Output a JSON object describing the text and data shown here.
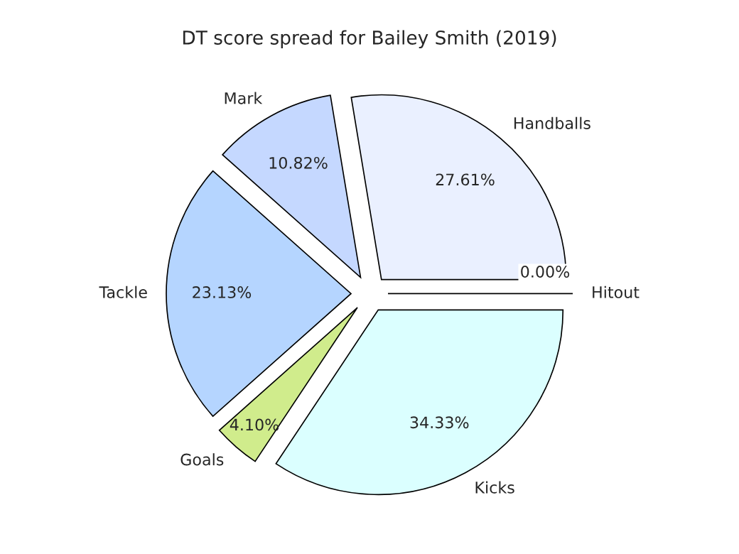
{
  "chart_data": {
    "type": "pie",
    "title": "DT score spread for Bailey Smith (2019)",
    "categories": [
      "Handballs",
      "Mark",
      "Tackle",
      "Goals",
      "Kicks",
      "Hitout"
    ],
    "values": [
      27.61,
      10.82,
      23.13,
      4.1,
      34.33,
      0.0
    ],
    "value_labels": [
      "27.61%",
      "10.82%",
      "23.13%",
      "4.10%",
      "34.33%",
      "0.00%"
    ],
    "colors": [
      "#eaf0ff",
      "#c5d8ff",
      "#b5d5ff",
      "#d0ec8c",
      "#dbffff",
      "#ffffff"
    ]
  }
}
